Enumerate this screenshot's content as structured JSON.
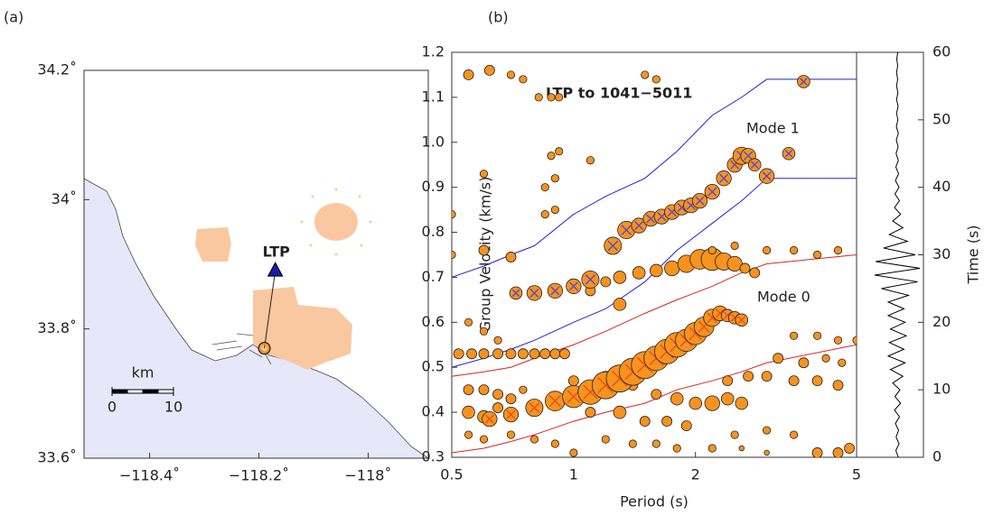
{
  "chart_data": [
    {
      "type": "map",
      "panel_label": "(a)",
      "xlim": [
        -118.52,
        -117.89
      ],
      "ylim": [
        33.6,
        34.2
      ],
      "xticks": [
        {
          "value": -118.4,
          "label": "−118.4˚"
        },
        {
          "value": -118.2,
          "label": "−118.2˚"
        },
        {
          "value": -118,
          "label": "−118˚"
        }
      ],
      "yticks": [
        {
          "value": 33.6,
          "label": "33.6˚"
        },
        {
          "value": 33.8,
          "label": "33.8˚"
        },
        {
          "value": 34,
          "label": "34˚"
        },
        {
          "value": 34.2,
          "label": "34.2˚"
        }
      ],
      "stations": [
        {
          "name": "LTP",
          "lon": -118.17,
          "lat": 33.89,
          "color": "#1a1aa8"
        }
      ],
      "event": {
        "lon": -118.19,
        "lat": 33.77,
        "color": "#f7931e"
      },
      "scale_bar": {
        "unit": "km",
        "ticks": [
          0,
          10
        ]
      }
    },
    {
      "type": "scatter",
      "panel_label": "(b)",
      "title": "LTP to 1041−5011",
      "annotations": [
        "Mode 1",
        "Mode 0"
      ],
      "xlabel": "Period (s)",
      "ylabel": "Group Velocity (km/s)",
      "y2label": "Time (s)",
      "log_x": true,
      "xlim": [
        0.5,
        5
      ],
      "xticks": [
        0.5,
        1,
        2,
        5
      ],
      "ylim": [
        0.3,
        1.2
      ],
      "yticks": [
        0.3,
        0.4,
        0.5,
        0.6,
        0.7,
        0.8,
        0.9,
        {
          "value": 1,
          "label": "1.0"
        },
        1.1,
        1.2
      ],
      "y2lim": [
        0,
        60
      ],
      "y2ticks": [
        0,
        10,
        20,
        30,
        40,
        50,
        60
      ],
      "points": {
        "color": "#f7931e",
        "x": [
          0.55,
          0.6,
          0.65,
          0.7,
          0.75,
          0.55,
          0.6,
          0.65,
          0.52,
          0.56,
          0.6,
          0.65,
          0.7,
          0.75,
          0.8,
          0.85,
          0.9,
          0.95,
          0.55,
          0.6,
          0.65,
          1.3,
          1.45,
          1.6,
          1.75,
          1.9,
          2.05,
          2.2,
          2.35,
          2.5,
          2.65,
          2.8,
          1.2,
          1.1,
          1.3,
          0.5,
          0.6,
          0.7,
          0.5,
          0.6,
          0.85,
          0.9,
          0.85,
          0.9,
          0.88,
          0.92,
          1.1,
          0.62,
          0.55,
          0.7,
          0.75,
          0.82,
          0.88,
          0.92,
          1.5,
          1.6,
          2.2,
          2.5,
          3,
          3.5,
          4,
          4.5,
          1.0,
          1.2,
          1.4,
          1.6,
          1.8,
          2.0,
          2.2,
          2.4,
          2.6,
          2.4,
          2.7,
          3.0,
          3.5,
          4.0,
          4.5,
          3.2,
          3.7,
          4.2,
          4.6,
          1.1,
          1.3,
          1.5,
          1.7,
          1.9,
          2.5,
          3.0,
          3.5,
          1.2,
          1.4,
          1.6,
          1.8,
          2.2,
          2.6,
          3.0,
          4.0,
          4.5,
          4.8,
          0.55,
          0.6,
          0.7,
          0.8,
          0.9,
          1.0,
          3.5,
          4.0,
          4.5,
          5.0
        ],
        "y": [
          0.45,
          0.45,
          0.44,
          0.43,
          0.45,
          0.4,
          0.39,
          0.41,
          0.53,
          0.53,
          0.53,
          0.53,
          0.53,
          0.53,
          0.53,
          0.53,
          0.53,
          0.53,
          0.6,
          0.58,
          0.56,
          0.7,
          0.71,
          0.715,
          0.72,
          0.73,
          0.74,
          0.74,
          0.735,
          0.73,
          0.72,
          0.71,
          0.69,
          0.67,
          0.64,
          0.75,
          0.76,
          0.745,
          0.84,
          0.93,
          0.84,
          0.85,
          0.9,
          0.92,
          0.97,
          0.98,
          0.96,
          1.16,
          1.15,
          1.15,
          1.14,
          1.1,
          1.1,
          1.1,
          1.15,
          1.14,
          0.76,
          0.77,
          0.76,
          0.76,
          0.75,
          0.76,
          0.47,
          0.48,
          0.46,
          0.44,
          0.43,
          0.42,
          0.42,
          0.43,
          0.42,
          0.47,
          0.48,
          0.48,
          0.47,
          0.47,
          0.46,
          0.52,
          0.51,
          0.52,
          0.51,
          0.4,
          0.4,
          0.38,
          0.38,
          0.37,
          0.35,
          0.36,
          0.35,
          0.34,
          0.33,
          0.33,
          0.32,
          0.32,
          0.32,
          0.31,
          0.31,
          0.31,
          0.32,
          0.35,
          0.34,
          0.35,
          0.34,
          0.33,
          0.31,
          0.57,
          0.57,
          0.56,
          0.56
        ],
        "size": [
          3,
          3,
          3,
          3,
          2,
          4,
          4,
          3,
          3,
          3,
          3,
          3,
          3,
          3,
          3,
          3,
          3,
          3,
          2,
          2,
          2,
          4,
          4,
          4,
          5,
          6,
          7,
          8,
          6,
          5,
          3,
          3,
          3,
          3,
          4,
          2,
          3,
          3,
          2,
          2,
          2,
          2,
          2,
          2,
          2,
          2,
          2,
          3,
          3,
          2,
          2,
          2,
          2,
          2,
          2,
          2,
          2,
          2,
          2,
          2,
          2,
          2,
          3,
          3,
          3,
          3,
          4,
          4,
          5,
          4,
          4,
          3,
          3,
          3,
          3,
          3,
          3,
          3,
          3,
          2,
          2,
          3,
          4,
          3,
          3,
          3,
          2,
          2,
          2,
          2,
          2,
          2,
          2,
          2,
          1,
          1,
          3,
          3,
          3,
          2,
          2,
          2,
          2,
          2,
          2,
          2,
          2,
          2,
          2
        ]
      },
      "picks": [
        {
          "color": "#f7931e",
          "cross_color": "#e8501a",
          "x": [
            0.62,
            0.7,
            0.8,
            0.9,
            1.0,
            1.1,
            1.2,
            1.3,
            1.4,
            1.5,
            1.6,
            1.7,
            1.8,
            1.9,
            2.0,
            2.1,
            2.2,
            2.3,
            2.4,
            2.5,
            2.6
          ],
          "y": [
            0.385,
            0.395,
            0.41,
            0.425,
            0.435,
            0.445,
            0.46,
            0.475,
            0.49,
            0.505,
            0.52,
            0.535,
            0.55,
            0.56,
            0.575,
            0.59,
            0.61,
            0.62,
            0.615,
            0.61,
            0.605
          ],
          "size": [
            5,
            5,
            6,
            7,
            8,
            9,
            10,
            10,
            10,
            10,
            9,
            9,
            9,
            8,
            8,
            7,
            6,
            5,
            4,
            4,
            4
          ]
        },
        {
          "color": "#f7931e",
          "cross_color": "#5a4ad0",
          "x": [
            0.72,
            0.8,
            0.9,
            1.0,
            1.1,
            1.25,
            1.35,
            1.45,
            1.55,
            1.65,
            1.75,
            1.85,
            1.95,
            2.05,
            2.2,
            2.35,
            2.5,
            2.6,
            2.7,
            2.8,
            3.0,
            3.4,
            3.7
          ],
          "y": [
            0.665,
            0.665,
            0.67,
            0.68,
            0.695,
            0.77,
            0.805,
            0.815,
            0.83,
            0.835,
            0.845,
            0.855,
            0.86,
            0.87,
            0.89,
            0.92,
            0.95,
            0.97,
            0.97,
            0.95,
            0.925,
            0.975,
            1.135
          ],
          "size": [
            4,
            5,
            5,
            5,
            6,
            6,
            6,
            5,
            5,
            5,
            5,
            5,
            5,
            5,
            5,
            5,
            5,
            6,
            5,
            4,
            5,
            4,
            4
          ]
        }
      ],
      "bounds": [
        {
          "color": "#2020d0",
          "x": [
            0.5,
            0.6,
            0.7,
            0.8,
            1,
            1.2,
            1.5,
            1.8,
            2.2,
            2.6,
            3,
            5
          ],
          "y": [
            0.7,
            0.725,
            0.75,
            0.77,
            0.84,
            0.88,
            0.92,
            0.98,
            1.06,
            1.1,
            1.14,
            1.14
          ]
        },
        {
          "color": "#2020d0",
          "x": [
            0.5,
            0.6,
            0.7,
            0.8,
            1,
            1.2,
            1.5,
            1.8,
            2.2,
            2.6,
            3,
            5
          ],
          "y": [
            0.5,
            0.52,
            0.54,
            0.56,
            0.6,
            0.63,
            0.69,
            0.76,
            0.82,
            0.87,
            0.92,
            0.92
          ]
        },
        {
          "color": "#e02020",
          "x": [
            0.5,
            0.6,
            0.7,
            0.8,
            1,
            1.2,
            1.5,
            1.8,
            2.2,
            2.6,
            3,
            5
          ],
          "y": [
            0.48,
            0.49,
            0.5,
            0.52,
            0.55,
            0.58,
            0.62,
            0.65,
            0.68,
            0.71,
            0.73,
            0.75
          ]
        },
        {
          "color": "#e02020",
          "x": [
            0.5,
            0.6,
            0.7,
            0.8,
            1,
            1.2,
            1.5,
            1.8,
            2.2,
            2.6,
            3,
            5
          ],
          "y": [
            0.31,
            0.32,
            0.335,
            0.35,
            0.38,
            0.4,
            0.42,
            0.45,
            0.47,
            0.49,
            0.51,
            0.55
          ]
        }
      ],
      "waveform": {
        "color": "#000000",
        "amp_lim": [
          -1.2,
          1.2
        ],
        "time": [
          0,
          1,
          2,
          3,
          4,
          5,
          6,
          7,
          8,
          9,
          10,
          11,
          12,
          13,
          14,
          15,
          16,
          17,
          18,
          19,
          20,
          21,
          22,
          23,
          24,
          25,
          26,
          27,
          28,
          29,
          30,
          31,
          32,
          33,
          34,
          35,
          36,
          37,
          38,
          39,
          40,
          41,
          42,
          43,
          44,
          45,
          46,
          47,
          48,
          49,
          50,
          51,
          52,
          53,
          54,
          55,
          56,
          57,
          58,
          59,
          60
        ],
        "amplitude": [
          0.05,
          -0.06,
          0.08,
          -0.05,
          0.06,
          -0.08,
          0.1,
          -0.12,
          0.15,
          -0.1,
          0.12,
          -0.2,
          0.25,
          -0.3,
          0.35,
          -0.4,
          0.3,
          -0.35,
          0.4,
          -0.3,
          0.35,
          -0.4,
          0.3,
          -0.4,
          0.5,
          -0.7,
          0.9,
          -1.0,
          1.0,
          -0.95,
          0.8,
          -0.6,
          0.45,
          -0.35,
          0.25,
          -0.2,
          0.15,
          -0.12,
          0.1,
          -0.1,
          0.08,
          -0.08,
          0.06,
          -0.06,
          0.05,
          -0.05,
          0.04,
          -0.04,
          0.05,
          -0.04,
          0.03,
          -0.03,
          0.04,
          -0.03,
          0.03,
          -0.03,
          0.02,
          -0.03,
          0.02,
          -0.02,
          0.02
        ]
      }
    }
  ]
}
